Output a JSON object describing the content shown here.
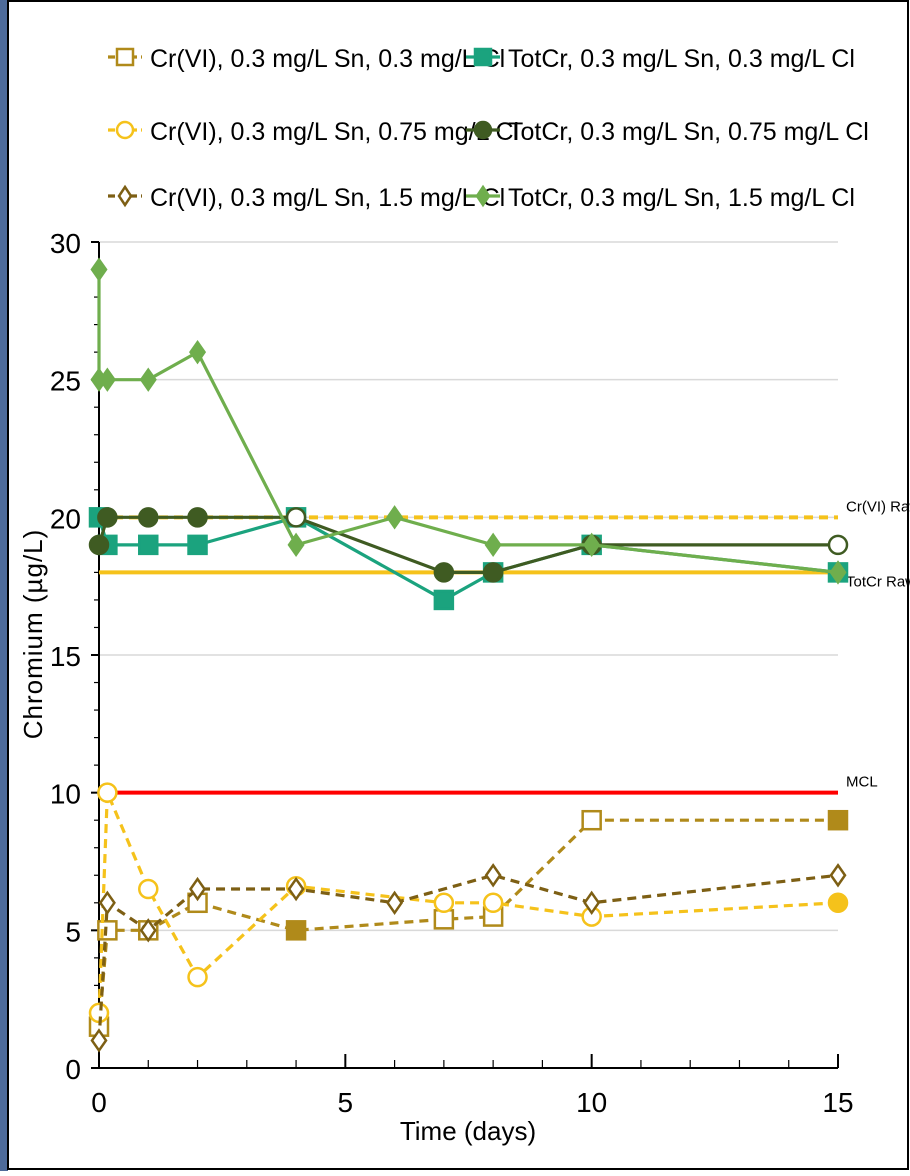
{
  "chart_data": {
    "type": "line",
    "title": "",
    "xlabel": "Time (days)",
    "ylabel": "Chromium (µg/L)",
    "xlim": [
      0,
      15
    ],
    "ylim": [
      0,
      30
    ],
    "x_ticks": [
      0,
      5,
      10,
      15
    ],
    "y_ticks": [
      0,
      5,
      10,
      15,
      20,
      25,
      30
    ],
    "grid": "horizontal",
    "legend_position": "top",
    "series": [
      {
        "name": "Cr(VI), 0.3 mg/L Sn, 0.3 mg/L Cl",
        "color": "#B08A1A",
        "marker": "square",
        "fill": "hollow",
        "dash": true,
        "points": [
          [
            0,
            1.5
          ],
          [
            0.17,
            5
          ],
          [
            1,
            5
          ],
          [
            2,
            6
          ],
          [
            4,
            5
          ],
          [
            7,
            5.4
          ],
          [
            8,
            5.5
          ],
          [
            10,
            9
          ],
          [
            15,
            9
          ]
        ],
        "filled_points": [
          [
            4,
            5
          ],
          [
            15,
            9
          ]
        ]
      },
      {
        "name": "TotCr, 0.3 mg/L Sn, 0.3 mg/L Cl",
        "color": "#1BA37E",
        "marker": "square",
        "fill": "solid",
        "dash": false,
        "points": [
          [
            0,
            20
          ],
          [
            0.17,
            19
          ],
          [
            1,
            19
          ],
          [
            2,
            19
          ],
          [
            4,
            20
          ],
          [
            7,
            17
          ],
          [
            8,
            18
          ],
          [
            10,
            19
          ],
          [
            15,
            18
          ]
        ]
      },
      {
        "name": "Cr(VI), 0.3 mg/L Sn, 0.75 mg/L Cl",
        "color": "#F5C21B",
        "marker": "circle",
        "fill": "hollow",
        "dash": true,
        "points": [
          [
            0,
            2
          ],
          [
            0.17,
            10
          ],
          [
            1,
            6.5
          ],
          [
            2,
            3.3
          ],
          [
            4,
            6.6
          ],
          [
            7,
            6
          ],
          [
            8,
            6
          ],
          [
            10,
            5.5
          ],
          [
            15,
            6
          ]
        ],
        "filled_points": [
          [
            15,
            6
          ]
        ]
      },
      {
        "name": "TotCr, 0.3 mg/L Sn, 0.75 mg/L Cl",
        "color": "#3F5B22",
        "marker": "circle",
        "fill": "solid",
        "dash": false,
        "points": [
          [
            0,
            19
          ],
          [
            0.17,
            20
          ],
          [
            1,
            20
          ],
          [
            2,
            20
          ],
          [
            4,
            20
          ],
          [
            7,
            18
          ],
          [
            8,
            18
          ],
          [
            10,
            19
          ],
          [
            15,
            19
          ]
        ],
        "hollow_points": [
          [
            4,
            20
          ],
          [
            15,
            19
          ]
        ]
      },
      {
        "name": "Cr(VI), 0.3 mg/L Sn, 1.5 mg/L Cl",
        "color": "#7D5F14",
        "marker": "diamond",
        "fill": "hollow",
        "dash": true,
        "points": [
          [
            0,
            1
          ],
          [
            0.17,
            6
          ],
          [
            1,
            5
          ],
          [
            2,
            6.5
          ],
          [
            4,
            6.5
          ],
          [
            6,
            6
          ],
          [
            8,
            7
          ],
          [
            10,
            6
          ],
          [
            15,
            7
          ]
        ]
      },
      {
        "name": "TotCr, 0.3 mg/L Sn, 1.5 mg/L Cl",
        "color": "#6FAE4D",
        "marker": "diamond",
        "fill": "solid",
        "dash": false,
        "points": [
          [
            0,
            29
          ],
          [
            0,
            25
          ],
          [
            0.17,
            25
          ],
          [
            1,
            25
          ],
          [
            2,
            26
          ],
          [
            4,
            19
          ],
          [
            6,
            20
          ],
          [
            8,
            19
          ],
          [
            10,
            19
          ],
          [
            15,
            18
          ]
        ]
      }
    ],
    "reference_lines": [
      {
        "label": "Cr(VI) Raw",
        "y": 20,
        "color": "#F5C21B",
        "dash": true
      },
      {
        "label": "TotCr Raw",
        "y": 18,
        "color": "#F5C21B",
        "dash": false
      },
      {
        "label": "MCL",
        "y": 10,
        "color": "#FF0000",
        "dash": false
      }
    ]
  },
  "colors": {
    "frame_border": "#000000",
    "side_accent": "#4E6B9A",
    "gridline": "#D9D9D9"
  }
}
